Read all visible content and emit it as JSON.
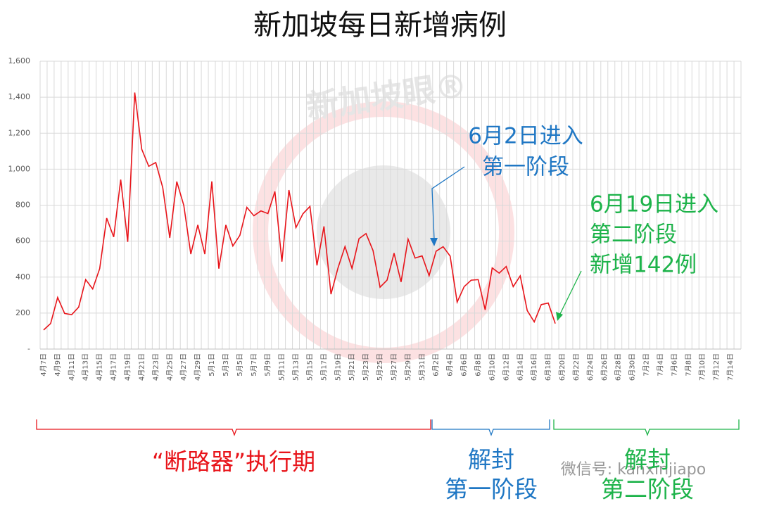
{
  "chart_data": {
    "type": "line",
    "title": "新加坡每日新增病例",
    "categories": [
      "4月7日",
      null,
      "4月9日",
      null,
      "4月11日",
      null,
      "4月13日",
      null,
      "4月15日",
      null,
      "4月17日",
      null,
      "4月19日",
      null,
      "4月21日",
      null,
      "4月23日",
      null,
      "4月25日",
      null,
      "4月27日",
      null,
      "4月29日",
      null,
      "5月1日",
      null,
      "5月3日",
      null,
      "5月5日",
      null,
      "5月7日",
      null,
      "5月9日",
      null,
      "5月11日",
      null,
      "5月13日",
      null,
      "5月15日",
      null,
      "5月17日",
      null,
      "5月19日",
      null,
      "5月21日",
      null,
      "5月23日",
      null,
      "5月25日",
      null,
      "5月27日",
      null,
      "5月29日",
      null,
      "5月31日",
      null,
      "6月2日",
      null,
      "6月4日",
      null,
      "6月6日",
      null,
      "6月8日",
      null,
      "6月10日",
      null,
      "6月12日",
      null,
      "6月14日",
      null,
      "6月16日",
      null,
      "6月18日",
      null,
      "6月20日",
      null,
      "6月22日",
      null,
      "6月24日",
      null,
      "6月26日",
      null,
      "6月28日",
      null,
      "6月30日",
      null,
      "7月2日",
      null,
      "7月4日",
      null,
      "7月6日",
      null,
      "7月8日",
      null,
      "7月10日",
      null,
      "7月12日",
      null,
      "7月14日",
      null
    ],
    "values": [
      106,
      142,
      287,
      198,
      191,
      233,
      386,
      334,
      447,
      728,
      623,
      942,
      596,
      1426,
      1111,
      1016,
      1037,
      897,
      618,
      931,
      799,
      528,
      690,
      528,
      932,
      447,
      690,
      573,
      632,
      788,
      741,
      768,
      753,
      876,
      486,
      884,
      675,
      752,
      793,
      465,
      682,
      305,
      451,
      570,
      448,
      614,
      642,
      548,
      344,
      383,
      533,
      373,
      611,
      506,
      518,
      408,
      544,
      569,
      517,
      261,
      347,
      383,
      386,
      218,
      451,
      422,
      459,
      347,
      407,
      214,
      151,
      247,
      256,
      142,
      null,
      null,
      null,
      null,
      null,
      null,
      null,
      null,
      null,
      null,
      null,
      null,
      null,
      null,
      null,
      null,
      null,
      null,
      null,
      null,
      null,
      null,
      null,
      null,
      null,
      null
    ],
    "color": "#e8141a",
    "ylim": [
      0,
      1600
    ],
    "yticks": [
      {
        "value": 0,
        "label": "-"
      },
      200,
      400,
      600,
      800,
      {
        "value": 1000,
        "label": "1,000"
      },
      {
        "value": 1200,
        "label": "1,200"
      },
      {
        "value": 1400,
        "label": "1,400"
      },
      {
        "value": 1600,
        "label": "1,600"
      }
    ],
    "grid": true,
    "annotations": [
      {
        "lines": [
          "6月2日进入",
          "第一阶段"
        ],
        "color": "#1f77c4"
      },
      {
        "lines": [
          "6月19日进入",
          "第二阶段",
          "新增142例"
        ],
        "color": "#1db34a"
      }
    ],
    "periods": [
      {
        "lines": [
          "“断路器”执行期"
        ],
        "color": "#e8141a"
      },
      {
        "lines": [
          "解封",
          "第一阶段"
        ],
        "color": "#1f77c4"
      },
      {
        "lines": [
          "解封",
          "第二阶段"
        ],
        "color": "#1db34a"
      }
    ],
    "watermark": "新加坡眼®",
    "wechat": "微信号: kanxinjiapo"
  }
}
